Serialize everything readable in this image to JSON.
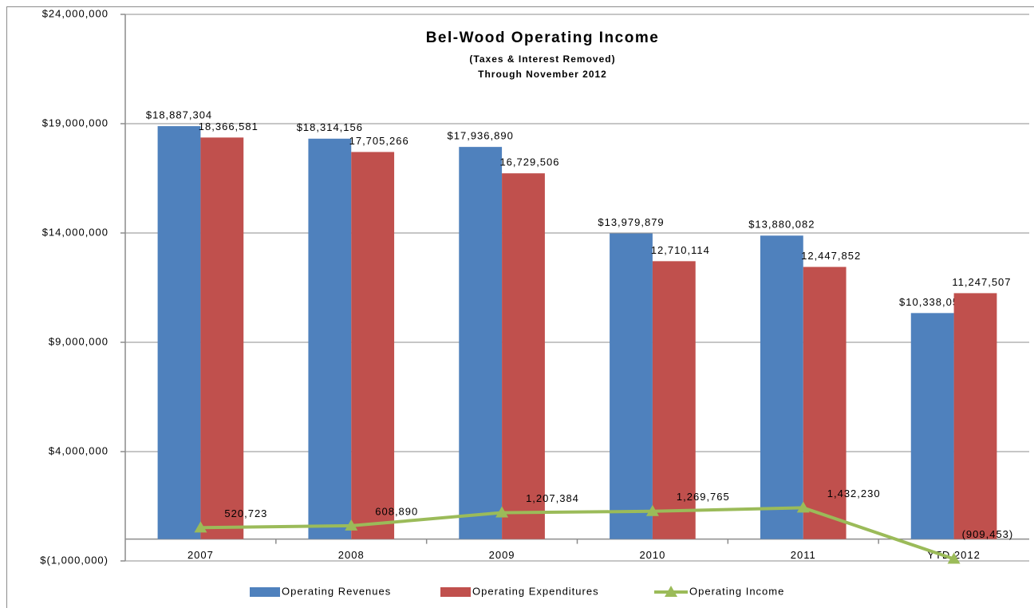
{
  "chart_data": {
    "type": "bar",
    "title": "Bel-Wood Operating Income",
    "subtitle": [
      "(Taxes & Interest Removed)",
      "Through November 2012"
    ],
    "categories": [
      "2007",
      "2008",
      "2009",
      "2010",
      "2011",
      "YTD 2012"
    ],
    "ylim": [
      -1000000,
      24000000
    ],
    "yticks": [
      {
        "value": -1000000,
        "label": "$(1,000,000)"
      },
      {
        "value": 4000000,
        "label": "$4,000,000"
      },
      {
        "value": 9000000,
        "label": "$9,000,000"
      },
      {
        "value": 14000000,
        "label": "$14,000,000"
      },
      {
        "value": 19000000,
        "label": "$19,000,000"
      },
      {
        "value": 24000000,
        "label": "$24,000,000"
      }
    ],
    "grid": true,
    "series": [
      {
        "name": "Operating Revenues",
        "type": "bar",
        "color": "#4f81bd",
        "values": [
          18887304,
          18314156,
          17936890,
          13979879,
          13880082,
          10338054
        ],
        "value_labels": [
          "$18,887,304",
          "$18,314,156",
          "$17,936,890",
          "$13,979,879",
          "$13,880,082",
          "$10,338,054"
        ]
      },
      {
        "name": "Operating Expenditures",
        "type": "bar",
        "color": "#c0504d",
        "values": [
          18366581,
          17705266,
          16729506,
          12710114,
          12447852,
          11247507
        ],
        "value_labels": [
          "18,366,581",
          "17,705,266",
          "16,729,506",
          "12,710,114",
          "12,447,852",
          "11,247,507"
        ]
      },
      {
        "name": "Operating Income",
        "type": "line",
        "color": "#9bbb59",
        "values": [
          520723,
          608890,
          1207384,
          1269765,
          1432230,
          -909453
        ],
        "value_labels": [
          "520,723",
          "608,890",
          "1,207,384",
          "1,269,765",
          "1,432,230",
          "(909,453)"
        ]
      }
    ]
  }
}
